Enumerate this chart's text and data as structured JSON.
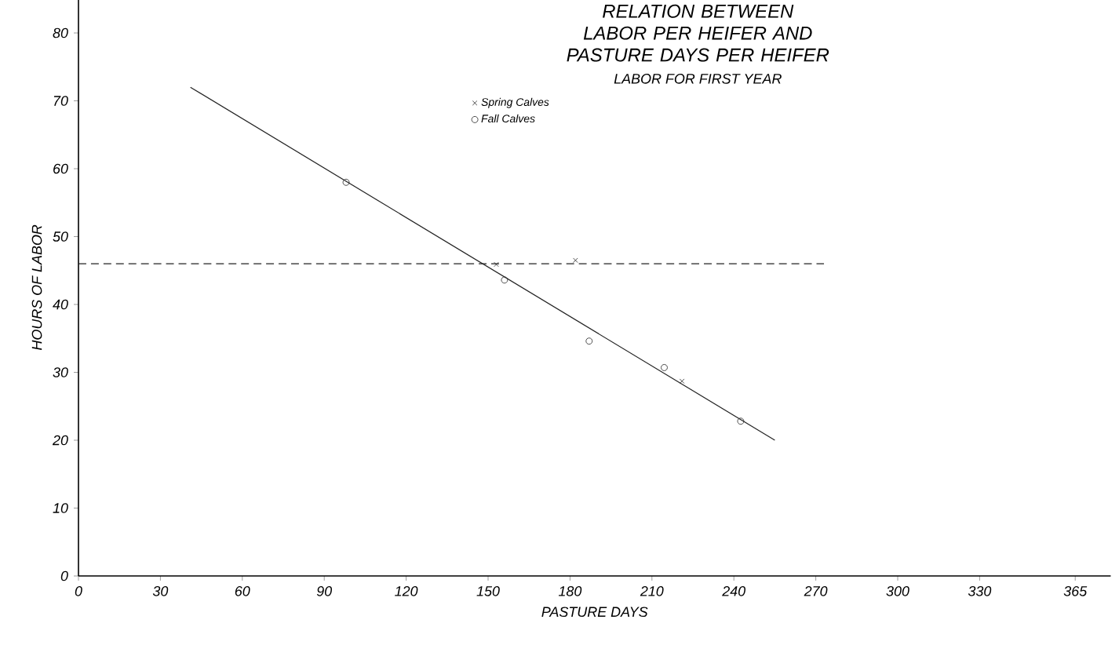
{
  "chart_data": {
    "type": "scatter",
    "title": "RELATION BETWEEN LABOR PER HEIFER AND PASTURE DAYS PER HEIFER",
    "subtitle": "LABOR FOR FIRST YEAR",
    "xlabel": "PASTURE DAYS",
    "ylabel": "HOURS OF LABOR",
    "series": [
      {
        "name": "Spring Calves",
        "marker": "cross",
        "color": "#222222",
        "x": [
          153,
          182,
          221
        ],
        "values": [
          45.9,
          46.5,
          28.7
        ]
      },
      {
        "type": "line",
        "line_style": "dashed",
        "marker": "none",
        "color": "#222222",
        "x": [
          0,
          273
        ],
        "values": [
          46,
          46
        ]
      },
      {
        "name": "Fall Calves",
        "marker": "circle",
        "color": "#222222",
        "x": [
          98,
          156,
          187,
          214.5,
          242.5
        ],
        "values": [
          58,
          43.6,
          34.6,
          30.7,
          22.8
        ]
      },
      {
        "type": "line",
        "line_style": "solid",
        "marker": "none",
        "color": "#222222",
        "x": [
          41,
          255
        ],
        "values": [
          72,
          20
        ]
      }
    ],
    "xlim": [
      0,
      378
    ],
    "ylim": [
      0,
      85
    ],
    "xticks": [
      0,
      30,
      60,
      90,
      120,
      150,
      180,
      210,
      240,
      270,
      300,
      330,
      365
    ],
    "yticks": [
      0,
      10,
      20,
      30,
      40,
      50,
      60,
      70,
      80
    ],
    "legend": "top",
    "grid": false
  }
}
